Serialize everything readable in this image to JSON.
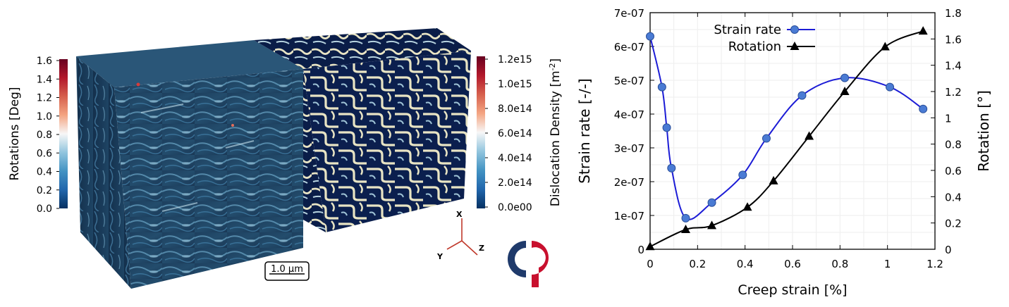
{
  "left_panel": {
    "rotations_colorbar": {
      "label": "Rotations [Deg]",
      "ticks": [
        "1.6",
        "1.4",
        "1.2",
        "1.0",
        "0.8",
        "0.6",
        "0.4",
        "0.2",
        "0.0"
      ],
      "colors": [
        "#67001f",
        "#b2182b",
        "#d6604d",
        "#f4a582",
        "#f7f7f7",
        "#92c5de",
        "#4393c3",
        "#2166ac",
        "#053061"
      ]
    },
    "density_colorbar": {
      "label": "Dislocation Density [m",
      "label_sup": "-2",
      "label_end": "]",
      "ticks": [
        "1.2e15",
        "1.0e15",
        "8.0e14",
        "6.0e14",
        "4.0e14",
        "2.0e14",
        "0.0e00"
      ],
      "colors": [
        "#67001f",
        "#b2182b",
        "#d6604d",
        "#f4a582",
        "#f7f7f7",
        "#92c5de",
        "#4393c3",
        "#2166ac",
        "#053061"
      ]
    },
    "scale_bar": "1.0 µm",
    "axes_triad": {
      "x": "X",
      "y": "Y",
      "z": "Z",
      "color": "#c0392b"
    },
    "logo_colors": {
      "dark": "#1f3a6b",
      "red": "#c8102e"
    }
  },
  "chart_data": {
    "type": "line",
    "xlabel": "Creep strain [%]",
    "ylabel": "Strain rate [-/-]",
    "y2label": "Rotation [°]",
    "xlim": [
      0,
      1.2
    ],
    "ylim": [
      0,
      7e-07
    ],
    "y2lim": [
      0,
      1.8
    ],
    "x_ticks": [
      "0",
      "0.2",
      "0.4",
      "0.6",
      "0.8",
      "1",
      "1.2"
    ],
    "y_ticks": [
      "0",
      "1e-07",
      "2e-07",
      "3e-07",
      "4e-07",
      "5e-07",
      "6e-07",
      "7e-07"
    ],
    "y2_ticks": [
      "0",
      "0.2",
      "0.4",
      "0.6",
      "0.8",
      "1",
      "1.2",
      "1.4",
      "1.6",
      "1.8"
    ],
    "grid": true,
    "legend_position": "top-left",
    "series": [
      {
        "name": "Strain rate",
        "axis": "left",
        "color": "#1c1cd6",
        "marker_color": "#4a7bd4",
        "marker": "circle",
        "x": [
          0.0,
          0.05,
          0.07,
          0.09,
          0.15,
          0.26,
          0.39,
          0.49,
          0.64,
          0.82,
          1.01,
          1.15
        ],
        "y": [
          6.3e-07,
          4.8e-07,
          3.6e-07,
          2.4e-07,
          9.2e-08,
          1.38e-07,
          2.2e-07,
          3.28e-07,
          4.55e-07,
          5.07e-07,
          4.8e-07,
          4.15e-07
        ]
      },
      {
        "name": "Rotation",
        "axis": "right",
        "color": "#000000",
        "marker_color": "#000000",
        "marker": "triangle",
        "x": [
          0.0,
          0.15,
          0.26,
          0.41,
          0.52,
          0.67,
          0.82,
          0.99,
          1.15
        ],
        "y": [
          0.02,
          0.15,
          0.18,
          0.32,
          0.52,
          0.86,
          1.2,
          1.54,
          1.66
        ]
      }
    ]
  }
}
